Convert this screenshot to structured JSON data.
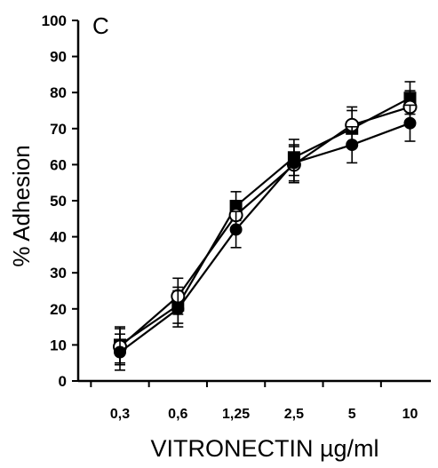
{
  "chart_data": {
    "type": "line",
    "panel_label": "C",
    "xlabel": "VITRONECTIN µg/ml",
    "ylabel": "% Adhesion",
    "categories": [
      "0,3",
      "0,6",
      "1,25",
      "2,5",
      "5",
      "10"
    ],
    "ylim": [
      0,
      100
    ],
    "yticks": [
      0,
      10,
      20,
      30,
      40,
      50,
      60,
      70,
      80,
      90,
      100
    ],
    "grid": false,
    "legend": "none",
    "series": [
      {
        "marker": "square-filled",
        "values": [
          10,
          21,
          48.5,
          62,
          70,
          78.5
        ],
        "errors": [
          5,
          5,
          4,
          5,
          5,
          4.5
        ]
      },
      {
        "marker": "circle-open",
        "values": [
          9.5,
          23.5,
          46,
          60,
          71,
          76
        ],
        "errors": [
          5,
          5,
          4,
          5,
          5,
          4.5
        ]
      },
      {
        "marker": "circle-filled",
        "values": [
          8,
          20,
          42,
          60.5,
          65.5,
          71.5
        ],
        "errors": [
          5,
          5,
          5,
          5,
          5,
          5
        ]
      }
    ]
  }
}
